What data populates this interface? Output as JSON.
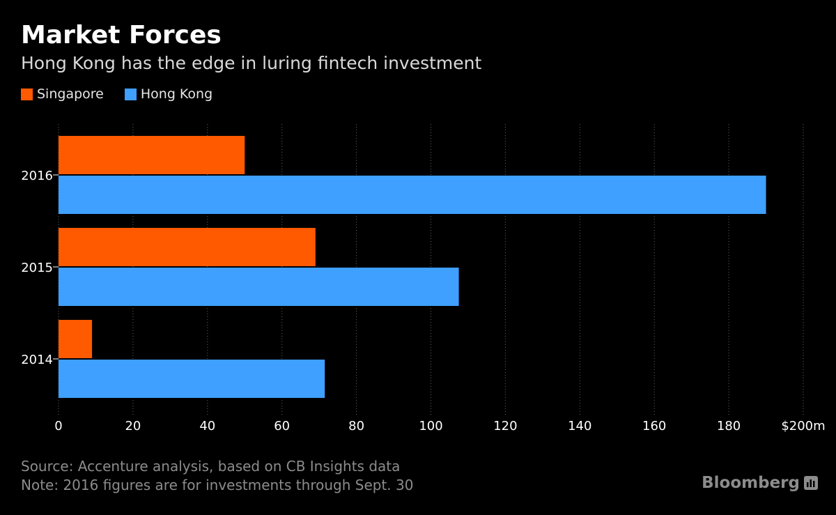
{
  "header": {
    "title": "Market Forces",
    "subtitle": "Hong Kong has the edge in luring fintech investment"
  },
  "legend": [
    {
      "label": "Singapore",
      "color": "#ff5a00"
    },
    {
      "label": "Hong Kong",
      "color": "#3fa0ff"
    }
  ],
  "chart_data": {
    "type": "bar",
    "orientation": "horizontal",
    "categories": [
      "2016",
      "2015",
      "2014"
    ],
    "series": [
      {
        "name": "Singapore",
        "color": "#ff5a00",
        "values": [
          50,
          69,
          9
        ]
      },
      {
        "name": "Hong Kong",
        "color": "#3fa0ff",
        "values": [
          190,
          107.5,
          71.5
        ]
      }
    ],
    "xlim": [
      0,
      200
    ],
    "x_ticks": [
      0,
      20,
      40,
      60,
      80,
      100,
      120,
      140,
      160,
      180,
      200
    ],
    "x_tick_labels": [
      "0",
      "20",
      "40",
      "60",
      "80",
      "100",
      "120",
      "140",
      "160",
      "180",
      "$200m"
    ],
    "grid": "vertical dotted",
    "legend_position": "top-left"
  },
  "footer": {
    "source": "Source: Accenture analysis, based on CB Insights data",
    "note": "Note: 2016 figures are for investments through Sept. 30"
  },
  "brand": {
    "name": "Bloomberg",
    "icon": "bloomberg-logo-icon"
  }
}
